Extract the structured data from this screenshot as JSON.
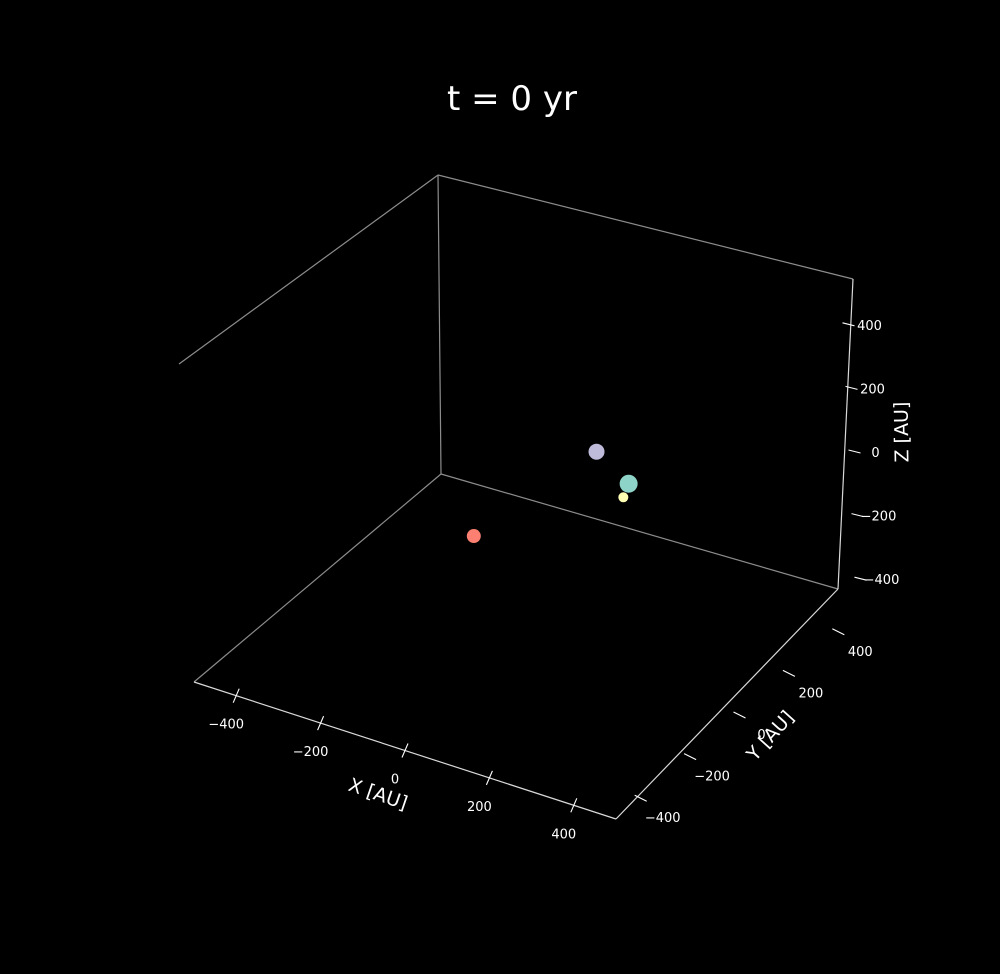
{
  "chart_data": {
    "type": "scatter",
    "projection": "3d",
    "title": "t = 0 yr",
    "xlabel": "X [AU]",
    "ylabel": "Y [AU]",
    "zlabel": "Z [AU]",
    "xlim": [
      -500,
      500
    ],
    "ylim": [
      -500,
      500
    ],
    "zlim": [
      -500,
      500
    ],
    "xticks": [
      -400,
      -200,
      0,
      200,
      400
    ],
    "yticks": [
      -400,
      -200,
      0,
      200,
      400
    ],
    "zticks": [
      -400,
      -200,
      0,
      200,
      400
    ],
    "xtick_labels": [
      "−400",
      "−200",
      "0",
      "200",
      "400"
    ],
    "ytick_labels": [
      "−400",
      "−200",
      "0",
      "200",
      "400"
    ],
    "ztick_labels": [
      "−400",
      "−200",
      "0",
      "200",
      "400"
    ],
    "grid": false,
    "background": "#000000",
    "series": [
      {
        "color": "#bebada",
        "points": [
          {
            "x": 90,
            "y": 155,
            "z": 50
          }
        ]
      },
      {
        "color": "#8dd3c7",
        "points": [
          {
            "x": 210,
            "y": 80,
            "z": 50
          }
        ]
      },
      {
        "color": "#ffffb3",
        "points": [
          {
            "x": 205,
            "y": 65,
            "z": 15
          }
        ]
      },
      {
        "color": "#fb8072",
        "points": [
          {
            "x": -150,
            "y": 50,
            "z": -250
          }
        ]
      }
    ]
  }
}
